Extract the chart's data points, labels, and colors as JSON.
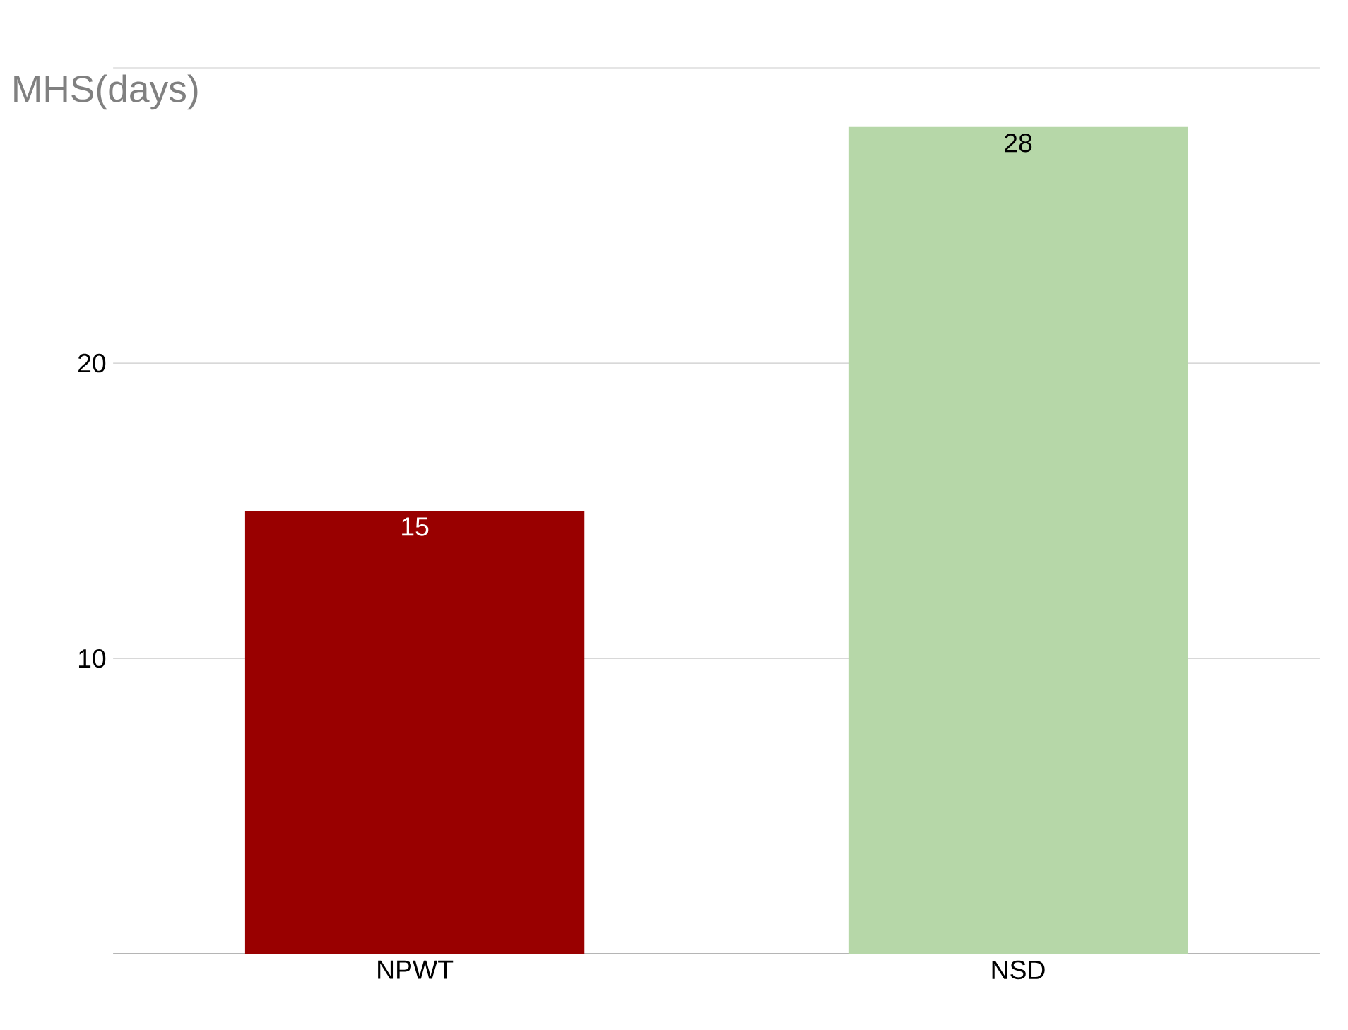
{
  "chart_data": {
    "type": "bar",
    "ylabel": "MHS(days)",
    "categories": [
      "NPWT",
      "NSD"
    ],
    "values": [
      15,
      28
    ],
    "colors": [
      "#990000",
      "#b6d7a8"
    ],
    "ylim": [
      0,
      30
    ],
    "yticks": [
      {
        "value": 0,
        "label": null
      },
      10,
      20,
      {
        "value": 30,
        "label": null
      }
    ],
    "grid": "y",
    "data_labels": true
  }
}
